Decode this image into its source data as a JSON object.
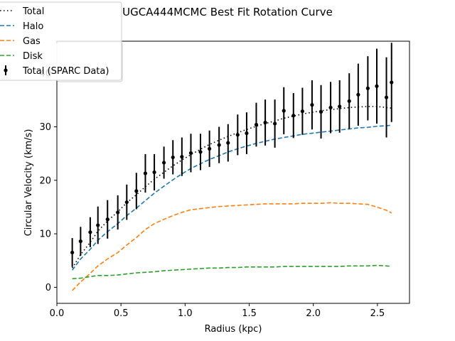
{
  "chart_data": {
    "type": "line",
    "title": "UGCA444MCMC Best Fit Rotation Curve",
    "xlabel": "Radius (kpc)",
    "ylabel": "Circular Velocity (km/s)",
    "xlim": [
      0.0,
      2.75
    ],
    "ylim": [
      -3.0,
      46.0
    ],
    "xticks": [
      0.0,
      0.5,
      1.0,
      1.5,
      2.0,
      2.5
    ],
    "xtick_labels": [
      "0.0",
      "0.5",
      "1.0",
      "1.5",
      "2.0",
      "2.5"
    ],
    "yticks": [
      0,
      10,
      20,
      30,
      40
    ],
    "ytick_labels": [
      "0",
      "10",
      "20",
      "30",
      "40"
    ],
    "grid": false,
    "legend_placement": "upper-left",
    "x": [
      0.12,
      0.185,
      0.26,
      0.32,
      0.395,
      0.475,
      0.545,
      0.62,
      0.69,
      0.76,
      0.835,
      0.905,
      0.975,
      1.045,
      1.12,
      1.19,
      1.265,
      1.335,
      1.41,
      1.48,
      1.555,
      1.625,
      1.7,
      1.77,
      1.845,
      1.915,
      1.99,
      2.06,
      2.135,
      2.205,
      2.28,
      2.35,
      2.425,
      2.495,
      2.57,
      2.61
    ],
    "series": [
      {
        "name": "Total",
        "color": "#000000",
        "style": "dotted",
        "values": [
          3.6,
          6.1,
          8.4,
          10.5,
          12.4,
          14.1,
          15.8,
          17.3,
          18.8,
          20.2,
          21.5,
          22.7,
          23.8,
          24.8,
          25.8,
          26.7,
          27.5,
          28.2,
          28.9,
          29.5,
          30.1,
          30.6,
          31.1,
          31.6,
          32.0,
          32.4,
          32.7,
          33.0,
          33.2,
          33.4,
          33.6,
          33.7,
          33.8,
          33.8,
          33.6,
          33.5
        ]
      },
      {
        "name": "Halo",
        "color": "#1f77b4",
        "style": "dashed",
        "values": [
          3.2,
          5.3,
          7.1,
          8.8,
          10.4,
          11.9,
          13.4,
          14.8,
          16.2,
          17.6,
          18.9,
          20.1,
          21.2,
          22.2,
          23.1,
          23.9,
          24.6,
          25.3,
          25.9,
          26.4,
          26.9,
          27.3,
          27.7,
          28.0,
          28.3,
          28.6,
          28.8,
          29.0,
          29.2,
          29.4,
          29.6,
          29.8,
          29.9,
          30.1,
          30.2,
          30.3
        ]
      },
      {
        "name": "Gas",
        "color": "#ff7f0e",
        "style": "dashed",
        "values": [
          -0.6,
          1.0,
          2.6,
          4.0,
          5.3,
          6.5,
          7.9,
          9.3,
          10.8,
          11.9,
          12.7,
          13.4,
          14.0,
          14.5,
          14.7,
          14.9,
          15.1,
          15.2,
          15.3,
          15.4,
          15.5,
          15.6,
          15.6,
          15.6,
          15.6,
          15.7,
          15.7,
          15.7,
          15.8,
          15.7,
          15.7,
          15.6,
          15.5,
          15.0,
          14.4,
          13.9
        ]
      },
      {
        "name": "Disk",
        "color": "#2ca02c",
        "style": "dashed",
        "values": [
          1.6,
          1.7,
          2.0,
          2.2,
          2.2,
          2.3,
          2.5,
          2.7,
          2.8,
          2.9,
          3.1,
          3.2,
          3.3,
          3.4,
          3.5,
          3.6,
          3.6,
          3.7,
          3.7,
          3.8,
          3.8,
          3.8,
          3.8,
          3.9,
          3.9,
          3.9,
          3.9,
          3.9,
          3.9,
          3.9,
          4.0,
          4.0,
          4.0,
          4.1,
          4.0,
          3.9
        ]
      }
    ],
    "errorbar_series": {
      "name": "Total (SPARC Data)",
      "color": "#000000",
      "values": [
        6.5,
        8.6,
        10.3,
        11.6,
        12.7,
        14.0,
        15.9,
        18.0,
        21.3,
        21.5,
        23.3,
        24.3,
        24.4,
        25.1,
        25.3,
        25.9,
        26.6,
        27.0,
        28.5,
        28.8,
        30.4,
        30.8,
        30.6,
        33.0,
        32.1,
        32.9,
        34.1,
        32.8,
        33.6,
        33.8,
        34.8,
        36.0,
        37.2,
        37.6,
        35.5,
        38.3
      ],
      "errors": [
        2.7,
        2.7,
        2.8,
        3.5,
        3.6,
        3.2,
        3.3,
        3.4,
        3.6,
        3.4,
        3.0,
        3.2,
        3.6,
        3.6,
        3.4,
        3.4,
        3.4,
        3.5,
        3.8,
        3.9,
        4.1,
        4.3,
        4.5,
        4.4,
        4.2,
        4.4,
        4.6,
        5.0,
        4.8,
        4.9,
        5.2,
        5.8,
        6.0,
        7.0,
        7.5,
        7.4
      ]
    }
  }
}
